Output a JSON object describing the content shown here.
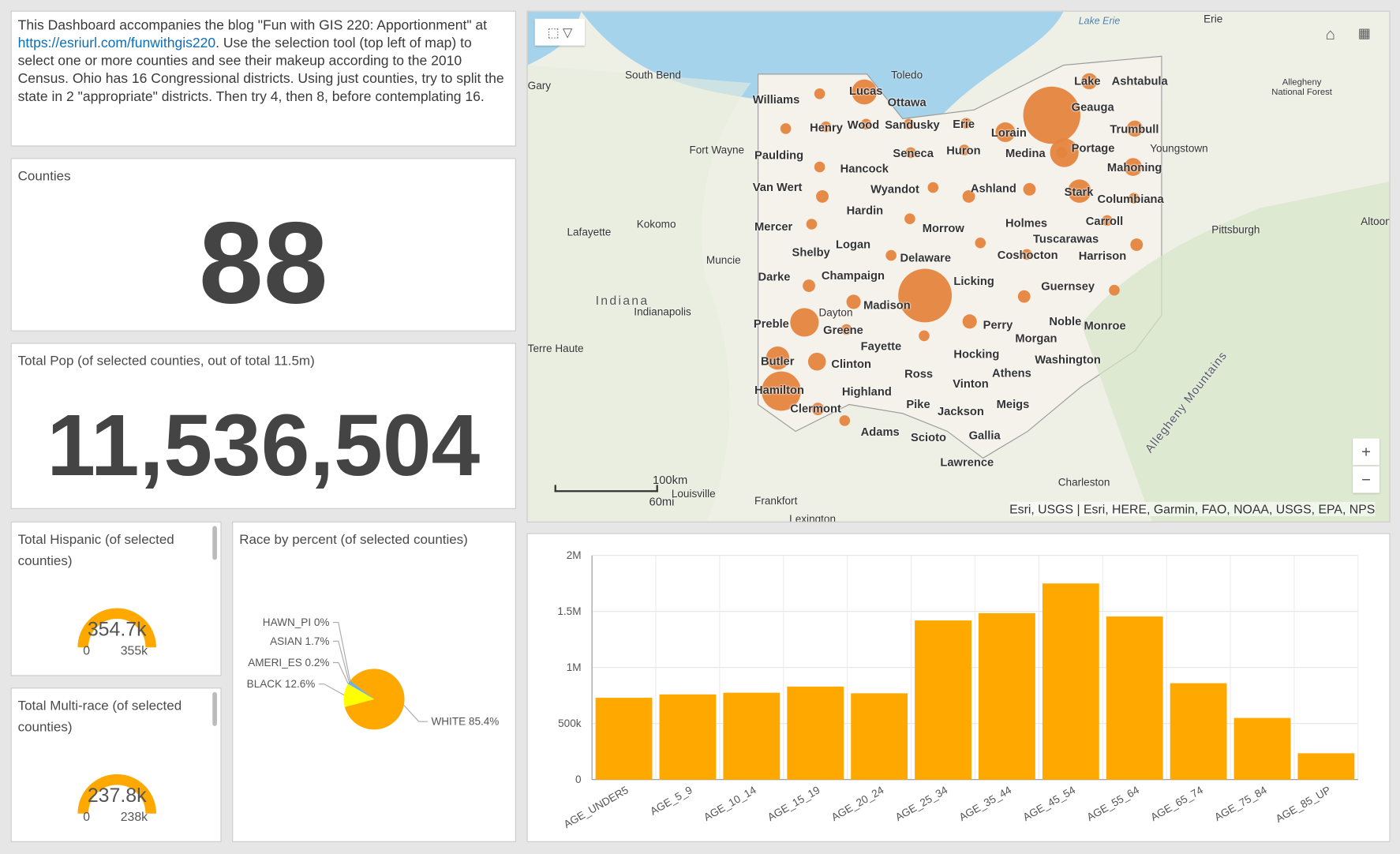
{
  "intro": {
    "text1": "This Dashboard accompanies the blog \"Fun with GIS 220: Apportionment\" at ",
    "link": "https://esriurl.com/funwithgis220",
    "text2": ". Use the selection tool (top left of map) to select one or more counties and see their makeup according to the 2010 Census. Ohio has 16 Congressional districts. Using just counties, try to split the state in 2 \"appropriate\" districts. Then try 4, then 8, before contemplating 16."
  },
  "counties": {
    "title": "Counties",
    "value": "88"
  },
  "total_pop": {
    "title": "Total Pop (of selected counties, out of total 11.5m)",
    "value": "11,536,504"
  },
  "hispanic": {
    "title": "Total Hispanic (of selected counties)",
    "value": "354.7k",
    "min": "0",
    "max": "355k",
    "fill": 1.0
  },
  "multirace": {
    "title": "Total Multi-race (of selected counties)",
    "value": "237.8k",
    "min": "0",
    "max": "238k",
    "fill": 1.0
  },
  "race": {
    "title": "Race by percent (of selected counties)"
  },
  "map": {
    "attribution": "Esri, USGS | Esri, HERE, Garmin, FAO, NOAA, USGS, EPA, NPS",
    "scale_km": "100km",
    "scale_mi": "60mi",
    "zoom_in": "+",
    "zoom_out": "−",
    "counties": [
      "Williams",
      "Lucas",
      "Ottawa",
      "Henry",
      "Wood",
      "Sandusky",
      "Erie",
      "Lorain",
      "Lake",
      "Ashtabula",
      "Geauga",
      "Trumbull",
      "Portage",
      "Medina",
      "Huron",
      "Seneca",
      "Paulding",
      "Hancock",
      "Mahoning",
      "Van Wert",
      "Wyandot",
      "Ashland",
      "Stark",
      "Columbiana",
      "Hardin",
      "Mercer",
      "Morrow",
      "Holmes",
      "Carroll",
      "Tuscarawas",
      "Shelby",
      "Logan",
      "Delaware",
      "Coshocton",
      "Harrison",
      "Darke",
      "Champaign",
      "Licking",
      "Guernsey",
      "Madison",
      "Preble",
      "Greene",
      "Perry",
      "Noble",
      "Monroe",
      "Morgan",
      "Fayette",
      "Butler",
      "Clinton",
      "Hocking",
      "Washington",
      "Ross",
      "Athens",
      "Hamilton",
      "Highland",
      "Vinton",
      "Clermont",
      "Pike",
      "Meigs",
      "Jackson",
      "Adams",
      "Scioto",
      "Gallia",
      "Lawrence"
    ],
    "places": [
      "Toledo",
      "South Bend",
      "Gary",
      "Fort Wayne",
      "Lafayette",
      "Kokomo",
      "Muncie",
      "Indiana",
      "Indianapolis",
      "Terre Haute",
      "Louisville",
      "Frankfort",
      "Lexington",
      "Erie",
      "Youngstown",
      "Pittsburgh",
      "Altoona",
      "Charleston",
      "Allegheny National Forest",
      "Lake Erie",
      "Allegheny Mountains",
      "Dayton"
    ]
  },
  "chart_data": {
    "type": "bar",
    "categories": [
      "AGE_UNDER5",
      "AGE_5_9",
      "AGE_10_14",
      "AGE_15_19",
      "AGE_20_24",
      "AGE_25_34",
      "AGE_35_44",
      "AGE_45_54",
      "AGE_55_64",
      "AGE_65_74",
      "AGE_75_84",
      "AGE_85_UP"
    ],
    "values": [
      730000,
      760000,
      775000,
      830000,
      770000,
      1420000,
      1485000,
      1750000,
      1455000,
      860000,
      550000,
      235000
    ],
    "ylim": [
      0,
      2000000
    ],
    "yticks": [
      "0",
      "500k",
      "1M",
      "1.5M",
      "2M"
    ],
    "grid": true,
    "color": "#ffa900"
  },
  "pie_data": {
    "type": "pie",
    "slices": [
      {
        "label": "WHITE 85.4%",
        "value": 85.4,
        "color": "#ffa900"
      },
      {
        "label": "BLACK 12.6%",
        "value": 12.6,
        "color": "#ffff00"
      },
      {
        "label": "AMERI_ES 0.2%",
        "value": 0.2,
        "color": "#4aa3df"
      },
      {
        "label": "ASIAN 1.7%",
        "value": 1.7,
        "color": "#6cb3e0"
      },
      {
        "label": "HAWN_PI 0%",
        "value": 0.05,
        "color": "#2e7bbd"
      }
    ]
  }
}
